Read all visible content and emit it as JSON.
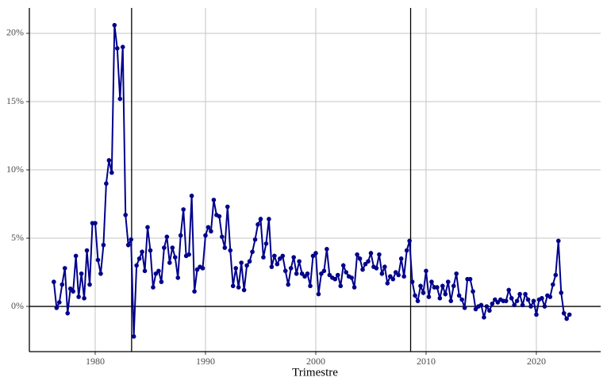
{
  "chart_data": {
    "type": "line",
    "x_label": "Trimestre",
    "color": "#00008b",
    "grid": true,
    "xlim": [
      1974.03,
      2025.83
    ],
    "ylim": [
      -3.31,
      21.86
    ],
    "xticks": [
      1980,
      1990,
      2000,
      2010,
      2020
    ],
    "yticks": [
      {
        "value": 0,
        "label": "0%"
      },
      {
        "value": 5,
        "label": "5%"
      },
      {
        "value": 10,
        "label": "10%"
      },
      {
        "value": 15,
        "label": "15%"
      },
      {
        "value": 20,
        "label": "20%"
      }
    ],
    "vlines": [
      1983.3,
      2008.6
    ],
    "hline": 0,
    "x": [
      1976.25,
      1976.5,
      1976.75,
      1977,
      1977.25,
      1977.5,
      1977.75,
      1978,
      1978.25,
      1978.5,
      1978.75,
      1979,
      1979.25,
      1979.5,
      1979.75,
      1980,
      1980.25,
      1980.5,
      1980.75,
      1981,
      1981.25,
      1981.5,
      1981.75,
      1982,
      1982.25,
      1982.5,
      1982.75,
      1983,
      1983.25,
      1983.5,
      1983.75,
      1984,
      1984.25,
      1984.5,
      1984.75,
      1985,
      1985.25,
      1985.5,
      1985.75,
      1986,
      1986.25,
      1986.5,
      1986.75,
      1987,
      1987.25,
      1987.5,
      1987.75,
      1988,
      1988.25,
      1988.5,
      1988.75,
      1989,
      1989.25,
      1989.5,
      1989.75,
      1990,
      1990.25,
      1990.5,
      1990.75,
      1991,
      1991.25,
      1991.5,
      1991.75,
      1992,
      1992.25,
      1992.5,
      1992.75,
      1993,
      1993.25,
      1993.5,
      1993.75,
      1994,
      1994.25,
      1994.5,
      1994.75,
      1995,
      1995.25,
      1995.5,
      1995.75,
      1996,
      1996.25,
      1996.5,
      1996.75,
      1997,
      1997.25,
      1997.5,
      1997.75,
      1998,
      1998.25,
      1998.5,
      1998.75,
      1999,
      1999.25,
      1999.5,
      1999.75,
      2000,
      2000.25,
      2000.5,
      2000.75,
      2001,
      2001.25,
      2001.5,
      2001.75,
      2002,
      2002.25,
      2002.5,
      2002.75,
      2003,
      2003.25,
      2003.5,
      2003.75,
      2004,
      2004.25,
      2004.5,
      2004.75,
      2005,
      2005.25,
      2005.5,
      2005.75,
      2006,
      2006.25,
      2006.5,
      2006.75,
      2007,
      2007.25,
      2007.5,
      2007.75,
      2008,
      2008.25,
      2008.5,
      2008.75,
      2009,
      2009.25,
      2009.5,
      2009.75,
      2010,
      2010.25,
      2010.5,
      2010.75,
      2011,
      2011.25,
      2011.5,
      2011.75,
      2012,
      2012.25,
      2012.5,
      2012.75,
      2013,
      2013.25,
      2013.5,
      2013.75,
      2014,
      2014.25,
      2014.5,
      2014.75,
      2015,
      2015.25,
      2015.5,
      2015.75,
      2016,
      2016.25,
      2016.5,
      2016.75,
      2017,
      2017.25,
      2017.5,
      2017.75,
      2018,
      2018.25,
      2018.5,
      2018.75,
      2019,
      2019.25,
      2019.5,
      2019.75,
      2020,
      2020.25,
      2020.5,
      2020.75,
      2021,
      2021.25,
      2021.5,
      2021.75,
      2022,
      2022.25,
      2022.5,
      2022.75,
      2023
    ],
    "values": [
      1.8,
      -0.1,
      0.3,
      1.6,
      2.8,
      -0.5,
      1.3,
      1.1,
      3.7,
      0.7,
      2.4,
      0.6,
      4.1,
      1.6,
      6.1,
      6.1,
      3.4,
      2.4,
      4.5,
      9.0,
      10.7,
      9.8,
      20.6,
      18.9,
      15.2,
      19.0,
      6.7,
      4.5,
      4.9,
      -2.2,
      3.0,
      3.5,
      4.0,
      2.6,
      5.8,
      4.1,
      1.4,
      2.4,
      2.6,
      1.8,
      4.3,
      5.1,
      3.2,
      4.3,
      3.6,
      2.1,
      5.2,
      7.1,
      3.7,
      3.8,
      8.1,
      1.1,
      2.7,
      2.9,
      2.8,
      5.2,
      5.8,
      5.5,
      7.8,
      6.7,
      6.6,
      5.1,
      4.3,
      7.3,
      4.1,
      1.5,
      2.8,
      1.4,
      3.2,
      1.2,
      3.0,
      3.3,
      4.0,
      4.9,
      6.0,
      6.4,
      3.6,
      4.6,
      6.4,
      2.9,
      3.7,
      3.1,
      3.5,
      3.7,
      2.6,
      1.6,
      2.8,
      3.6,
      2.4,
      3.3,
      2.4,
      2.2,
      2.4,
      1.5,
      3.7,
      3.9,
      0.9,
      2.4,
      2.6,
      4.2,
      2.3,
      2.1,
      2.0,
      2.3,
      1.5,
      3.0,
      2.5,
      2.2,
      2.1,
      1.4,
      3.8,
      3.5,
      2.7,
      3.1,
      3.3,
      3.9,
      2.9,
      2.8,
      3.8,
      2.4,
      2.9,
      1.7,
      2.2,
      2.0,
      2.5,
      2.3,
      3.5,
      2.2,
      4.1,
      4.8,
      1.8,
      0.8,
      0.4,
      1.5,
      1.0,
      2.6,
      0.7,
      1.8,
      1.4,
      1.4,
      0.6,
      1.5,
      0.9,
      1.8,
      0.4,
      1.5,
      2.4,
      0.8,
      0.5,
      -0.1,
      2.0,
      2.0,
      1.1,
      -0.2,
      0.0,
      0.1,
      -0.8,
      0.0,
      -0.3,
      0.2,
      0.5,
      0.3,
      0.5,
      0.4,
      0.4,
      1.2,
      0.6,
      0.1,
      0.4,
      0.9,
      0.1,
      0.9,
      0.5,
      0.0,
      0.4,
      -0.6,
      0.5,
      0.6,
      0.0,
      0.8,
      0.7,
      1.6,
      2.3,
      4.8,
      1.0,
      -0.5,
      -0.9,
      -0.6
    ]
  }
}
